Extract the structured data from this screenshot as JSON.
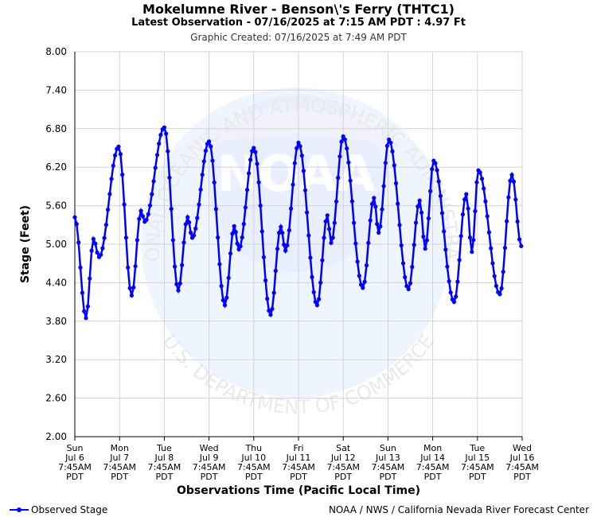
{
  "header": {
    "title": "Mokelumne River - Benson\\'s Ferry (THTC1)",
    "subtitle": "Latest Observation - 07/16/2025 at 7:15 AM PDT : 4.97 Ft",
    "created": "Graphic Created: 07/16/2025 at 7:49 AM PDT"
  },
  "watermark": {
    "top_text": "NATIONAL OCEANIC AND ATMOSPHERIC ADMINISTRATION",
    "bottom_text": "U.S. DEPARTMENT OF COMMERCE",
    "logo_text": "NOAA"
  },
  "legend": {
    "label": "Observed Stage",
    "color": "#0000ff"
  },
  "footer": {
    "credit": "NOAA / NWS / California Nevada River Forecast Center"
  },
  "chart_data": {
    "type": "line",
    "ylabel": "Stage (Feet)",
    "xlabel": "Observations Time (Pacific Local Time)",
    "ylim": [
      2.0,
      8.0
    ],
    "yticks": [
      "2.00",
      "2.60",
      "3.20",
      "3.80",
      "4.40",
      "5.00",
      "5.60",
      "6.20",
      "6.80",
      "7.40",
      "8.00"
    ],
    "xlim": [
      "2025-07-06 07:45",
      "2025-07-16 07:45"
    ],
    "xticks": [
      {
        "day": "Sun",
        "date": "Jul 6",
        "time": "7:45AM",
        "tz": "PDT"
      },
      {
        "day": "Mon",
        "date": "Jul 7",
        "time": "7:45AM",
        "tz": "PDT"
      },
      {
        "day": "Tue",
        "date": "Jul 8",
        "time": "7:45AM",
        "tz": "PDT"
      },
      {
        "day": "Wed",
        "date": "Jul 9",
        "time": "7:45AM",
        "tz": "PDT"
      },
      {
        "day": "Thu",
        "date": "Jul 10",
        "time": "7:45AM",
        "tz": "PDT"
      },
      {
        "day": "Fri",
        "date": "Jul 11",
        "time": "7:45AM",
        "tz": "PDT"
      },
      {
        "day": "Sat",
        "date": "Jul 12",
        "time": "7:45AM",
        "tz": "PDT"
      },
      {
        "day": "Sun",
        "date": "Jul 13",
        "time": "7:45AM",
        "tz": "PDT"
      },
      {
        "day": "Mon",
        "date": "Jul 14",
        "time": "7:45AM",
        "tz": "PDT"
      },
      {
        "day": "Tue",
        "date": "Jul 15",
        "time": "7:45AM",
        "tz": "PDT"
      },
      {
        "day": "Wed",
        "date": "Jul 16",
        "time": "7:45AM",
        "tz": "PDT"
      }
    ],
    "grid": true,
    "series": [
      {
        "name": "Observed Stage",
        "color": "#0000ff",
        "points": [
          {
            "x": "2025-07-06 07:45",
            "y": 5.42
          },
          {
            "x": "2025-07-06 13:45",
            "y": 3.85
          },
          {
            "x": "2025-07-06 17:45",
            "y": 5.08
          },
          {
            "x": "2025-07-06 20:45",
            "y": 4.8
          },
          {
            "x": "2025-07-07 07:15",
            "y": 6.52
          },
          {
            "x": "2025-07-07 14:15",
            "y": 4.2
          },
          {
            "x": "2025-07-07 19:15",
            "y": 5.52
          },
          {
            "x": "2025-07-07 21:15",
            "y": 5.35
          },
          {
            "x": "2025-07-08 07:45",
            "y": 6.82
          },
          {
            "x": "2025-07-08 15:15",
            "y": 4.28
          },
          {
            "x": "2025-07-08 20:15",
            "y": 5.42
          },
          {
            "x": "2025-07-08 22:45",
            "y": 5.1
          },
          {
            "x": "2025-07-09 07:45",
            "y": 6.6
          },
          {
            "x": "2025-07-09 16:15",
            "y": 4.05
          },
          {
            "x": "2025-07-09 21:15",
            "y": 5.28
          },
          {
            "x": "2025-07-09 23:45",
            "y": 4.92
          },
          {
            "x": "2025-07-10 07:45",
            "y": 6.5
          },
          {
            "x": "2025-07-10 16:45",
            "y": 3.9
          },
          {
            "x": "2025-07-10 22:15",
            "y": 5.27
          },
          {
            "x": "2025-07-11 00:45",
            "y": 4.9
          },
          {
            "x": "2025-07-11 07:45",
            "y": 6.58
          },
          {
            "x": "2025-07-11 17:45",
            "y": 4.05
          },
          {
            "x": "2025-07-11 23:15",
            "y": 5.45
          },
          {
            "x": "2025-07-12 01:15",
            "y": 5.02
          },
          {
            "x": "2025-07-12 07:45",
            "y": 6.68
          },
          {
            "x": "2025-07-12 18:15",
            "y": 4.32
          },
          {
            "x": "2025-07-13 00:15",
            "y": 5.72
          },
          {
            "x": "2025-07-13 02:45",
            "y": 5.18
          },
          {
            "x": "2025-07-13 08:15",
            "y": 6.63
          },
          {
            "x": "2025-07-13 18:45",
            "y": 4.3
          },
          {
            "x": "2025-07-14 00:45",
            "y": 5.68
          },
          {
            "x": "2025-07-14 03:45",
            "y": 4.93
          },
          {
            "x": "2025-07-14 08:15",
            "y": 6.3
          },
          {
            "x": "2025-07-14 19:15",
            "y": 4.1
          },
          {
            "x": "2025-07-15 01:45",
            "y": 5.78
          },
          {
            "x": "2025-07-15 04:45",
            "y": 4.88
          },
          {
            "x": "2025-07-15 08:15",
            "y": 6.15
          },
          {
            "x": "2025-07-15 19:45",
            "y": 4.22
          },
          {
            "x": "2025-07-16 02:15",
            "y": 6.08
          },
          {
            "x": "2025-07-16 07:15",
            "y": 4.97
          }
        ]
      }
    ]
  }
}
